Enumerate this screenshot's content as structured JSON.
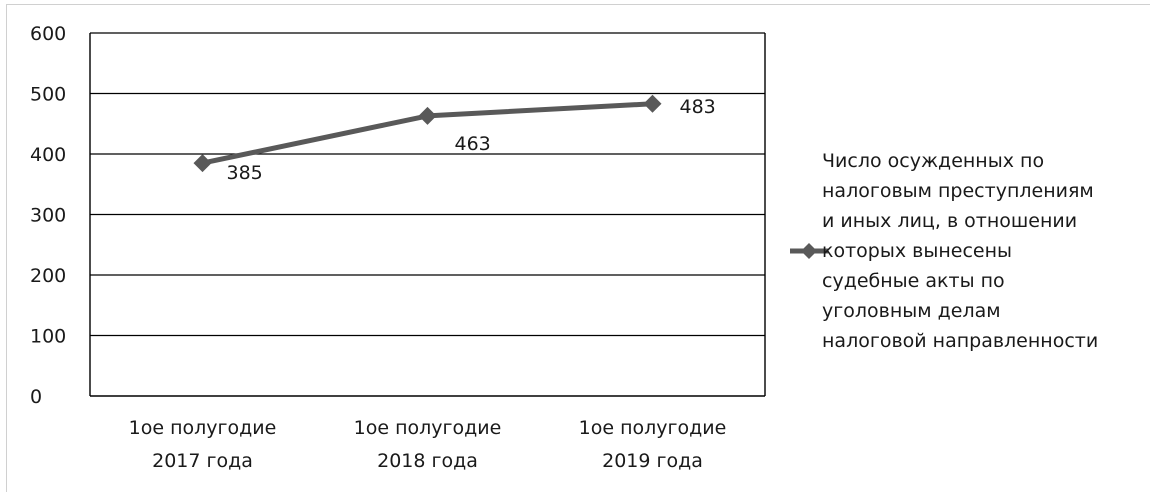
{
  "chart_data": {
    "type": "line",
    "categories": [
      [
        "1ое полугодие",
        "2017 года"
      ],
      [
        "1ое полугодие",
        "2018 года"
      ],
      [
        "1ое полугодие",
        "2019 года"
      ]
    ],
    "series": [
      {
        "name": "Число осужденных по налоговым преступлениям и иных лиц, в отношении которых вынесены судебные акты по уголовным делам налоговой направленности",
        "values": [
          385,
          463,
          483
        ],
        "color": "#595959",
        "marker": "diamond"
      }
    ],
    "yticks": [
      0,
      100,
      200,
      300,
      400,
      500,
      600
    ],
    "ylim": [
      0,
      600
    ],
    "grid": true,
    "legend_position": "right",
    "data_labels": true
  },
  "legend": {
    "lines": [
      "Число осужденных по",
      "налоговым преступлениям",
      "и иных лиц, в отношении",
      "которых вынесены",
      "судебные акты по",
      "уголовным делам",
      "налоговой направленности"
    ]
  },
  "colors": {
    "grid": "#000000",
    "series": "#595959",
    "text": "#1a1a1a"
  }
}
